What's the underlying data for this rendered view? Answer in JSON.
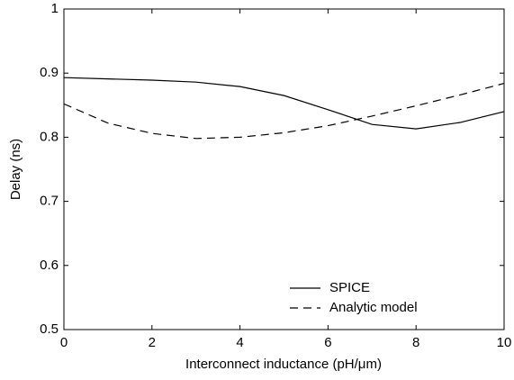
{
  "chart_data": {
    "type": "line",
    "xlabel": "Interconnect inductance (pH/μm)",
    "ylabel": "Delay (ns)",
    "x": [
      0,
      1,
      2,
      3,
      4,
      5,
      6,
      7,
      8,
      9,
      10
    ],
    "series": [
      {
        "name": "SPICE",
        "color": "#000000",
        "dash": "solid",
        "values": [
          0.893,
          0.891,
          0.889,
          0.886,
          0.879,
          0.865,
          0.843,
          0.82,
          0.813,
          0.823,
          0.84
        ]
      },
      {
        "name": "Analytic model",
        "color": "#000000",
        "dash": "dashed",
        "values": [
          0.852,
          0.822,
          0.806,
          0.798,
          0.8,
          0.807,
          0.818,
          0.833,
          0.849,
          0.866,
          0.884
        ]
      }
    ],
    "xlim": [
      0,
      10
    ],
    "xticks": [
      0,
      2,
      4,
      6,
      8,
      10
    ],
    "ylim": [
      0.5,
      1
    ],
    "yticks": [
      0.5,
      0.6,
      0.7,
      0.8,
      0.9,
      1
    ],
    "grid": false,
    "legend": "lower right"
  }
}
